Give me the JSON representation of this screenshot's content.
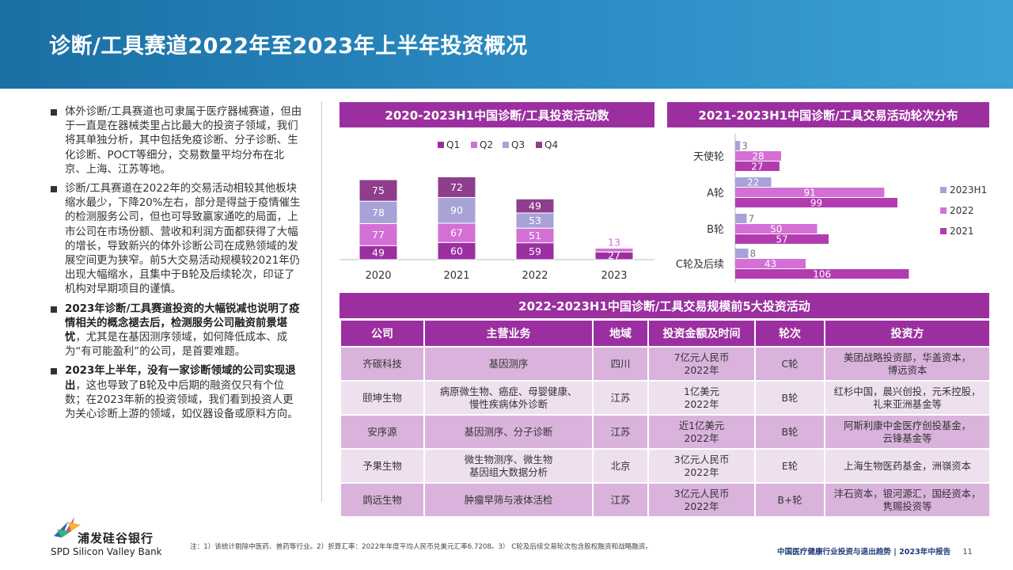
{
  "page": {
    "title": "诊断/工具赛道2022年至2023年上半年投资概况"
  },
  "bullets": [
    {
      "bold": "",
      "text": "体外诊断/工具赛道也可隶属于医疗器械赛道，但由于一直是在器械类里占比最大的投资子领域，我们将其单独分析，其中包括免疫诊断、分子诊断、生化诊断、POCT等细分，交易数量平均分布在北京、上海、江苏等地。"
    },
    {
      "bold": "",
      "text": "诊断/工具赛道在2022年的交易活动相较其他板块缩水最少，下降20%左右，部分是得益于疫情催生的检测服务公司，但也可导致赢家通吃的局面，上市公司在市场份额、营收和利润方面都获得了大幅的增长，导致新兴的体外诊断公司在成熟领域的发展空间更为狭窄。前5大交易活动规模较2021年仍出现大幅缩水，且集中于B轮及后续轮次，印证了机构对早期项目的谨慎。"
    },
    {
      "bold": "2023年诊断/工具赛道投资的大幅锐减也说明了疫情相关的概念褪去后，检测服务公司融资前景堪忧",
      "text": "，尤其是在基因测序领域，如何降低成本、成为“有可能盈利”的公司，是首要难题。"
    },
    {
      "bold": "2023年上半年，没有一家诊断领域的公司实现退出",
      "text": "，这也导致了B轮及中后期的融资仅只有个位数；在2023年新的投资领域，我们看到投资人更为关心诊断上游的领域，如仪器设备或原料方向。"
    }
  ],
  "colors": {
    "header": "#2b8cc4",
    "panel": "#9b2fa0",
    "q1": "#9b2fa0",
    "q2": "#d46fd6",
    "q3": "#a7a3d6",
    "q4": "#8e3e8c",
    "h2023": "#a7a3d6",
    "y2022": "#d46fd6",
    "y2021": "#b23bb0"
  },
  "chart1": {
    "panel_title": "2020-2023H1中国诊断/工具投资活动数",
    "legend": [
      "Q1",
      "Q2",
      "Q3",
      "Q4"
    ]
  },
  "chart2": {
    "panel_title": "2021-2023H1中国诊断/工具交易活动轮次分布",
    "legend": [
      "2023H1",
      "2022",
      "2021"
    ]
  },
  "chart_data": [
    {
      "type": "bar",
      "stacked": true,
      "title": "2020-2023H1中国诊断/工具投资活动数",
      "categories": [
        "2020",
        "2021",
        "2022",
        "2023"
      ],
      "series": [
        {
          "name": "Q1",
          "values": [
            49,
            60,
            59,
            27
          ]
        },
        {
          "name": "Q2",
          "values": [
            77,
            67,
            51,
            13
          ]
        },
        {
          "name": "Q3",
          "values": [
            78,
            90,
            53,
            null
          ]
        },
        {
          "name": "Q4",
          "values": [
            75,
            72,
            49,
            null
          ]
        }
      ],
      "legend": "top",
      "grid": false
    },
    {
      "type": "bar",
      "orientation": "horizontal",
      "title": "2021-2023H1中国诊断/工具交易活动轮次分布",
      "categories": [
        "天使轮",
        "A轮",
        "B轮",
        "C轮及后续"
      ],
      "series": [
        {
          "name": "2023H1",
          "values": [
            3,
            22,
            7,
            8
          ]
        },
        {
          "name": "2022",
          "values": [
            28,
            91,
            50,
            43
          ]
        },
        {
          "name": "2021",
          "values": [
            27,
            99,
            57,
            106
          ]
        }
      ],
      "legend": "right",
      "grid": false
    }
  ],
  "table": {
    "title": "2022-2023H1中国诊断/工具交易规模前5大投资活动",
    "headers": [
      "公司",
      "主营业务",
      "地域",
      "投资金额及时间",
      "轮次",
      "投资方"
    ],
    "rows": [
      [
        "齐碳科技",
        "基因测序",
        "四川",
        "7亿元人民币\n2022年",
        "C轮",
        "美团战略投资部，华盖资本，\n博远资本"
      ],
      [
        "颐坤生物",
        "病原微生物、癌症、母婴健康、\n慢性疾病体外诊断",
        "江苏",
        "1亿美元\n2022年",
        "B轮",
        "红杉中国，晨兴创投，元禾控股，\n礼来亚洲基金等"
      ],
      [
        "安序源",
        "基因测序、分子诊断",
        "江苏",
        "近1亿美元\n2022年",
        "B轮",
        "阿斯利康中金医疗创投基金，\n云锋基金等"
      ],
      [
        "予果生物",
        "微生物测序、微生物\n基因组大数据分析",
        "北京",
        "3亿元人民币\n2022年",
        "E轮",
        "上海生物医药基金，洲嶺资本"
      ],
      [
        "鹍远生物",
        "肿瘤早筛与液体活检",
        "江苏",
        "3亿元人民币\n2022年",
        "B+轮",
        "沣石资本，银河源汇，国经资本，\n隽赐投资等"
      ]
    ]
  },
  "footer": {
    "note": "注：1）该统计剔除中医药、兽药等行业。2）折算汇率：2022年年度平均人民币兑美元汇率6.7208。3） C轮及后续交易轮次包含股权融资和战略融资。",
    "report": "中国医疗健康行业投资与退出趋势 | 2023年中报告",
    "page": "11"
  },
  "logo": {
    "name_cn": "浦发硅谷银行",
    "name_en": "SPD Silicon Valley Bank"
  }
}
